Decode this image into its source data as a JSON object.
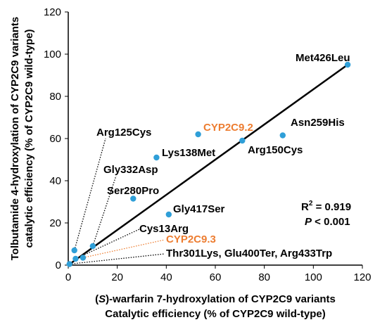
{
  "chart_data": {
    "type": "scatter",
    "xlim": [
      0,
      120
    ],
    "ylim": [
      0,
      120
    ],
    "x_ticks": [
      "0",
      "20",
      "40",
      "60",
      "80",
      "100",
      "120"
    ],
    "y_ticks": [
      "0",
      "20",
      "40",
      "60",
      "80",
      "100",
      "120"
    ],
    "xlabel_line1_pre": "(",
    "xlabel_line1_italic": "S",
    "xlabel_line1_post": ")-warfarin 7-hydroxylation of CYP2C9 variants",
    "xlabel_line2": "Catalytic efficiency (% of CYP2C9 wild-type)",
    "ylabel_line1": "Tolbutamide 4-hydroxylation of CYP2C9 variants",
    "ylabel_line2": "catalytic efficiency (% of CYP2C9 wild-type)",
    "grid": false,
    "marker_color": "#2f9fd8",
    "trendline": {
      "x": [
        0,
        114
      ],
      "y": [
        0,
        95
      ]
    },
    "stats": {
      "r2_base": "R",
      "r2_sup": "2",
      "r2_rest": " = 0.919",
      "p_italic": "P",
      "p_rest": " < 0.001"
    },
    "points": [
      {
        "x": 114,
        "y": 95,
        "label": "Met426Leu",
        "color": "#000000"
      },
      {
        "x": 53,
        "y": 62,
        "label": "CYP2C9.2",
        "color": "#ed7d31"
      },
      {
        "x": 87.5,
        "y": 61.5,
        "label": "Asn259His",
        "color": "#000000"
      },
      {
        "x": 71,
        "y": 59,
        "label": "Arg150Cys",
        "color": "#000000"
      },
      {
        "x": 36,
        "y": 51,
        "label": "Lys138Met",
        "color": "#000000"
      },
      {
        "x": 26.5,
        "y": 31.5,
        "label": "Ser280Pro",
        "color": "#000000"
      },
      {
        "x": 41,
        "y": 24,
        "label": "Gly417Ser",
        "color": "#000000"
      },
      {
        "x": 2.5,
        "y": 7,
        "label": "Arg125Cys",
        "color": "#000000"
      },
      {
        "x": 10,
        "y": 9,
        "label": "Gly332Asp",
        "color": "#000000"
      },
      {
        "x": 3,
        "y": 3,
        "label": "Cys13Arg",
        "color": "#000000"
      },
      {
        "x": 6,
        "y": 3.5,
        "label": "CYP2C9.3",
        "color": "#ed7d31"
      },
      {
        "x": 0.5,
        "y": 0.5,
        "label": "Thr301Lys, Glu400Ter, Arg433Trp",
        "color": "#000000"
      }
    ]
  }
}
